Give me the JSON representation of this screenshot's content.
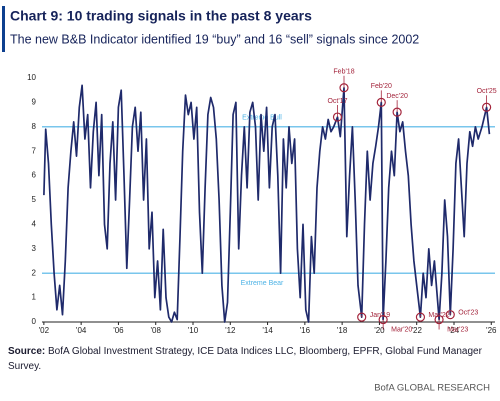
{
  "chart_data": {
    "type": "line",
    "title": "Chart 9: 10 trading signals in the past 8 years",
    "subtitle": "The new B&B Indicator identified 19 “buy” and 16 “sell” signals since 2002",
    "x": [
      2002.0,
      2002.1,
      2002.25,
      2002.4,
      2002.55,
      2002.7,
      2002.85,
      2003.0,
      2003.15,
      2003.3,
      2003.45,
      2003.6,
      2003.75,
      2003.9,
      2004.05,
      2004.2,
      2004.35,
      2004.5,
      2004.65,
      2004.8,
      2004.95,
      2005.1,
      2005.25,
      2005.4,
      2005.55,
      2005.7,
      2005.85,
      2006.0,
      2006.15,
      2006.3,
      2006.45,
      2006.6,
      2006.75,
      2006.9,
      2007.05,
      2007.2,
      2007.35,
      2007.5,
      2007.65,
      2007.8,
      2007.95,
      2008.1,
      2008.25,
      2008.4,
      2008.55,
      2008.7,
      2008.85,
      2009.0,
      2009.15,
      2009.3,
      2009.45,
      2009.6,
      2009.75,
      2009.9,
      2010.05,
      2010.2,
      2010.35,
      2010.5,
      2010.65,
      2010.8,
      2010.95,
      2011.1,
      2011.25,
      2011.4,
      2011.55,
      2011.7,
      2011.85,
      2012.0,
      2012.15,
      2012.3,
      2012.45,
      2012.6,
      2012.75,
      2012.9,
      2013.05,
      2013.2,
      2013.35,
      2013.5,
      2013.65,
      2013.8,
      2013.95,
      2014.1,
      2014.25,
      2014.4,
      2014.55,
      2014.7,
      2014.85,
      2015.0,
      2015.15,
      2015.3,
      2015.45,
      2015.6,
      2015.75,
      2015.9,
      2016.05,
      2016.2,
      2016.35,
      2016.5,
      2016.65,
      2016.8,
      2016.95,
      2017.1,
      2017.25,
      2017.4,
      2017.55,
      2017.75,
      2017.9,
      2018.1,
      2018.25,
      2018.4,
      2018.55,
      2018.7,
      2018.85,
      2019.05,
      2019.2,
      2019.35,
      2019.5,
      2019.65,
      2019.8,
      2019.95,
      2020.1,
      2020.2,
      2020.35,
      2020.5,
      2020.65,
      2020.8,
      2020.95,
      2021.1,
      2021.25,
      2021.4,
      2021.55,
      2021.7,
      2021.85,
      2022.0,
      2022.2,
      2022.35,
      2022.5,
      2022.65,
      2022.8,
      2022.95,
      2023.2,
      2023.35,
      2023.5,
      2023.65,
      2023.8,
      2023.95,
      2024.1,
      2024.25,
      2024.4,
      2024.55,
      2024.7,
      2024.85,
      2025.0,
      2025.15,
      2025.3,
      2025.5,
      2025.75,
      2025.9
    ],
    "series": [
      {
        "color": "#1f2a6b",
        "values": [
          5.2,
          7.9,
          6.5,
          4.0,
          2.0,
          0.5,
          1.5,
          0.3,
          2.5,
          5.5,
          7.0,
          8.2,
          6.8,
          8.8,
          9.7,
          7.5,
          8.5,
          5.5,
          7.8,
          9.0,
          6.0,
          8.5,
          4.0,
          3.0,
          6.5,
          8.2,
          5.0,
          8.8,
          9.5,
          6.0,
          2.2,
          5.0,
          8.0,
          8.8,
          7.0,
          8.6,
          5.0,
          7.5,
          3.0,
          4.5,
          1.0,
          2.5,
          0.5,
          3.8,
          1.0,
          0.2,
          0.0,
          0.4,
          0.1,
          3.5,
          7.0,
          9.3,
          8.5,
          9.0,
          7.5,
          8.8,
          4.5,
          2.0,
          5.5,
          8.5,
          9.2,
          8.8,
          7.5,
          5.0,
          1.5,
          0.0,
          0.8,
          4.5,
          8.5,
          9.0,
          3.0,
          6.0,
          8.0,
          5.5,
          8.6,
          9.0,
          8.0,
          5.0,
          8.5,
          7.0,
          8.8,
          5.5,
          8.0,
          8.5,
          6.0,
          2.0,
          7.5,
          5.5,
          8.0,
          6.5,
          7.5,
          3.0,
          1.0,
          4.0,
          0.5,
          0.0,
          3.5,
          2.0,
          5.5,
          7.0,
          8.0,
          7.5,
          8.3,
          7.8,
          8.0,
          8.4,
          7.6,
          9.6,
          3.5,
          6.0,
          8.0,
          5.0,
          1.5,
          0.2,
          4.0,
          7.0,
          5.0,
          6.5,
          7.2,
          8.0,
          9.0,
          0.1,
          2.5,
          5.5,
          7.0,
          6.0,
          8.6,
          7.8,
          8.2,
          7.0,
          6.0,
          4.0,
          2.5,
          1.5,
          0.2,
          2.0,
          1.0,
          3.0,
          1.5,
          2.5,
          0.1,
          2.0,
          5.0,
          3.5,
          0.3,
          3.0,
          6.5,
          7.5,
          5.5,
          3.5,
          6.5,
          7.8,
          7.2,
          8.0,
          7.5,
          8.0,
          8.8,
          7.7
        ]
      }
    ],
    "xlim": [
      2001.9,
      2026.2
    ],
    "ylim": [
      0,
      10
    ],
    "yticks": [
      0,
      1,
      2,
      3,
      4,
      5,
      6,
      7,
      8,
      9,
      10
    ],
    "xticks": [
      {
        "value": 2002,
        "label": "'02"
      },
      {
        "value": 2004,
        "label": "'04"
      },
      {
        "value": 2006,
        "label": "'06"
      },
      {
        "value": 2008,
        "label": "'08"
      },
      {
        "value": 2010,
        "label": "'10"
      },
      {
        "value": 2012,
        "label": "'12"
      },
      {
        "value": 2014,
        "label": "'14"
      },
      {
        "value": 2016,
        "label": "'16"
      },
      {
        "value": 2018,
        "label": "'18"
      },
      {
        "value": 2020,
        "label": "'20"
      },
      {
        "value": 2022,
        "label": "'22"
      },
      {
        "value": 2024,
        "label": "'24"
      },
      {
        "value": 2026,
        "label": "'26"
      }
    ],
    "reference_lines": [
      {
        "value": 8,
        "label": "Extreme Bull",
        "color": "#4db3e6"
      },
      {
        "value": 2,
        "label": "Extreme Bear",
        "color": "#4db3e6"
      }
    ],
    "annotations": [
      {
        "label": "Oct'17",
        "x": 2017.75,
        "y": 8.4,
        "position": "above"
      },
      {
        "label": "Feb'18",
        "x": 2018.1,
        "y": 9.6,
        "position": "above"
      },
      {
        "label": "Feb'20",
        "x": 2020.1,
        "y": 9.0,
        "position": "above"
      },
      {
        "label": "Dec'20",
        "x": 2020.95,
        "y": 8.6,
        "position": "above"
      },
      {
        "label": "Oct'25",
        "x": 2025.75,
        "y": 8.8,
        "position": "above"
      },
      {
        "label": "Jan'19",
        "x": 2019.05,
        "y": 0.2,
        "position": "below"
      },
      {
        "label": "Mar'20",
        "x": 2020.2,
        "y": 0.1,
        "position": "below"
      },
      {
        "label": "Mar'22",
        "x": 2022.2,
        "y": 0.2,
        "position": "below"
      },
      {
        "label": "Mar'23",
        "x": 2023.2,
        "y": 0.1,
        "position": "below"
      },
      {
        "label": "Oct'23",
        "x": 2023.8,
        "y": 0.3,
        "position": "below"
      }
    ],
    "annotation_color": "#a3243b",
    "source_label": "Source:",
    "source": "BofA Global Investment Strategy, ICE Data Indices LLC, Bloomberg, EPFR, Global Fund Manager Survey.",
    "credit": "BofA GLOBAL RESEARCH"
  }
}
